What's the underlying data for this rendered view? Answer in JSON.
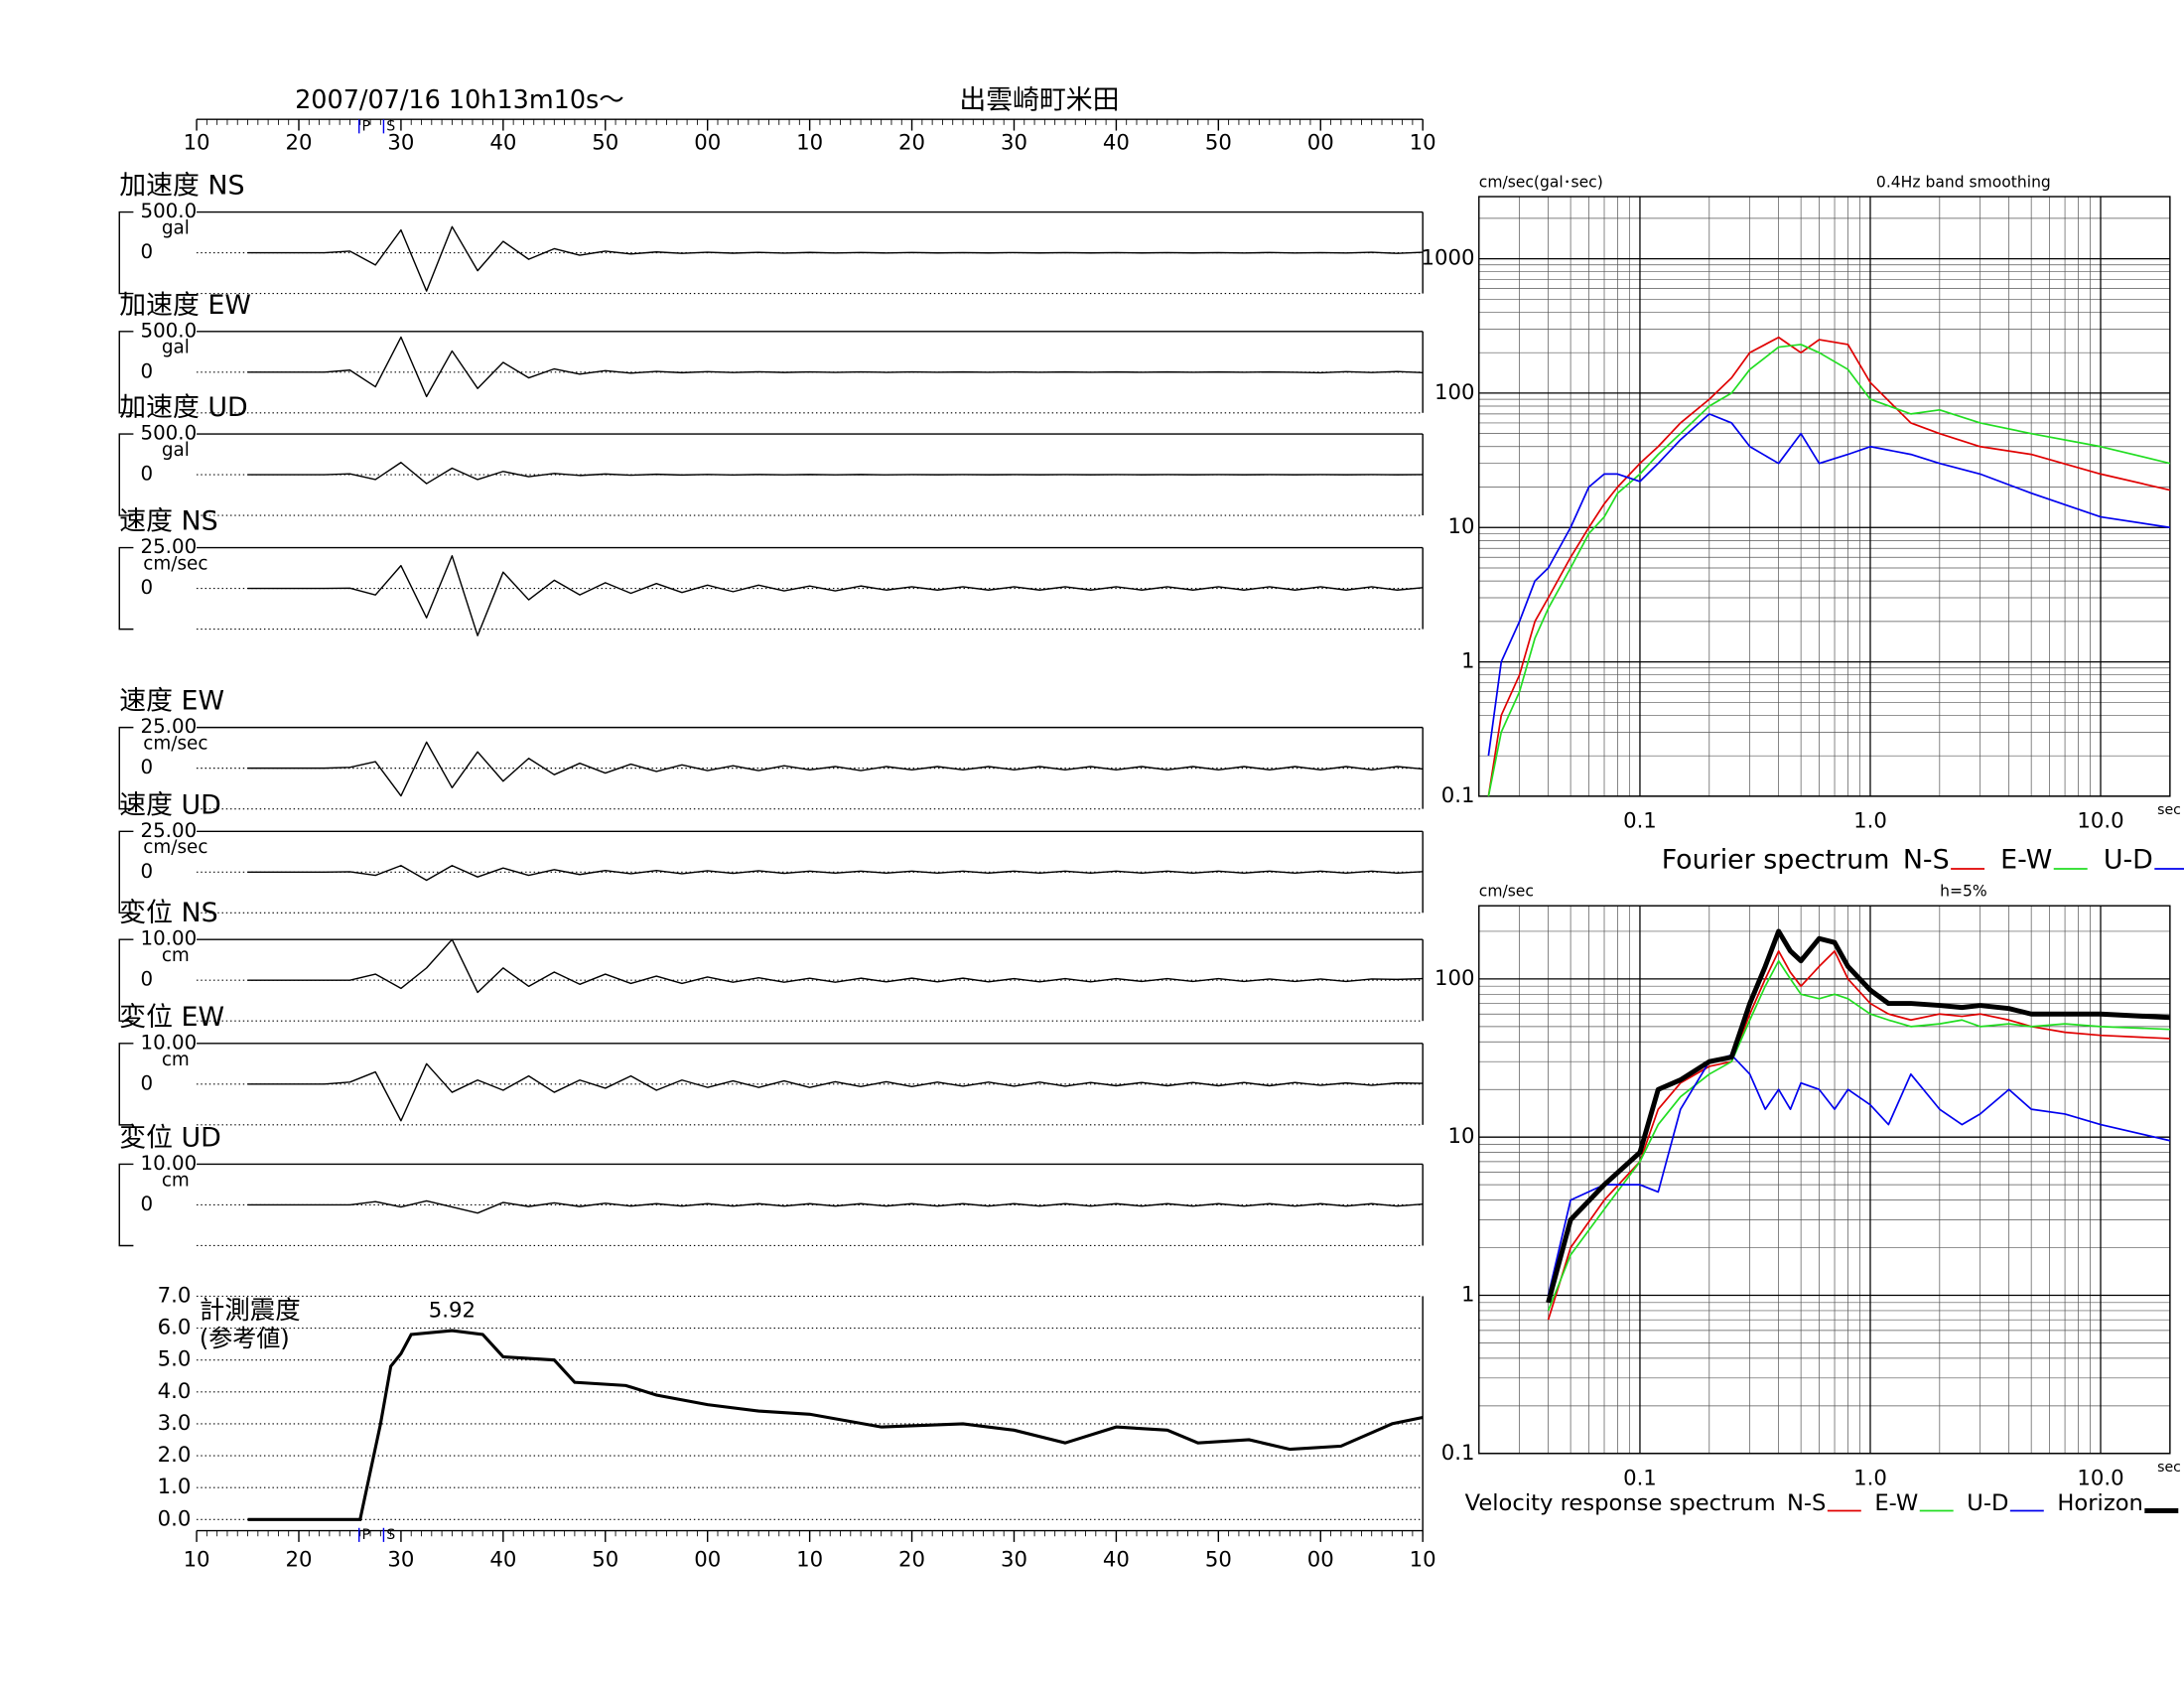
{
  "chart_data": [
    {
      "type": "waveform",
      "title": "2007/07/16  10h13m10s〜",
      "subtitle": "出雲崎町米田",
      "color": "#000000",
      "x": [
        15,
        17.5,
        20,
        22.5,
        25,
        27.5,
        30,
        32.5,
        35,
        37.5,
        40,
        42.5,
        45,
        47.5,
        50,
        52.5,
        55,
        57.5,
        60,
        62.5,
        65,
        67.5,
        70,
        72.5,
        75,
        77.5,
        80,
        82.5,
        85,
        87.5,
        90,
        92.5,
        95,
        97.5,
        100,
        102.5,
        105,
        107.5,
        110,
        112.5,
        115,
        117.5,
        120,
        122.5,
        125,
        127.5,
        130
      ],
      "xlim": [
        10,
        130
      ],
      "xticks": [
        10,
        20,
        30,
        40,
        50,
        {
          "value": 60,
          "label": "00"
        },
        {
          "value": 70,
          "label": "10"
        },
        {
          "value": 80,
          "label": "20"
        },
        {
          "value": 90,
          "label": "30"
        },
        {
          "value": 100,
          "label": "40"
        },
        {
          "value": 110,
          "label": "50"
        },
        {
          "value": 120,
          "label": "00"
        },
        {
          "value": 130,
          "label": "10"
        }
      ],
      "phase_markers": [
        {
          "label": "P",
          "value": 25.9
        },
        {
          "label": "S",
          "value": 28.3
        }
      ],
      "panels": [
        {
          "name": "加速度 NS",
          "unit": "gal",
          "ylim": [
            -500,
            500
          ],
          "yticks": [
            {
              "value": 500,
              "label": "500.0"
            },
            0
          ],
          "values": [
            0,
            0,
            0,
            0,
            20,
            -150,
            280,
            -470,
            320,
            -220,
            140,
            -80,
            50,
            -30,
            20,
            -15,
            10,
            -8,
            6,
            -5,
            5,
            -4,
            4,
            -3,
            3,
            -3,
            3,
            -2,
            2,
            -2,
            2,
            -2,
            2,
            -2,
            2,
            -2,
            2,
            -2,
            2,
            -3,
            3,
            -3,
            2,
            -3,
            6,
            -8,
            6
          ]
        },
        {
          "name": "加速度 EW",
          "unit": "gal",
          "ylim": [
            -500,
            500
          ],
          "yticks": [
            {
              "value": 500,
              "label": "500.0"
            },
            0
          ],
          "values": [
            0,
            0,
            0,
            0,
            25,
            -180,
            430,
            -300,
            260,
            -200,
            120,
            -70,
            40,
            -25,
            18,
            -12,
            9,
            -7,
            6,
            -5,
            4,
            -4,
            3,
            -3,
            3,
            -3,
            3,
            -2,
            2,
            -2,
            2,
            -2,
            2,
            -2,
            2,
            -2,
            2,
            -2,
            2,
            -2,
            2,
            -2,
            -8,
            6,
            -5,
            7,
            -6
          ]
        },
        {
          "name": "加速度 UD",
          "unit": "gal",
          "ylim": [
            -500,
            500
          ],
          "yticks": [
            {
              "value": 500,
              "label": "500.0"
            },
            0
          ],
          "values": [
            0,
            0,
            0,
            0,
            10,
            -60,
            150,
            -110,
            80,
            -60,
            40,
            -25,
            15,
            -10,
            8,
            -6,
            5,
            -4,
            3,
            -3,
            2,
            -2,
            2,
            -2,
            2,
            -2,
            1,
            -1,
            1,
            -1,
            1,
            -1,
            1,
            -1,
            1,
            -1,
            1,
            -1,
            1,
            -1,
            1,
            -1,
            1,
            -1,
            1,
            -1,
            1
          ]
        },
        {
          "name": "速度 NS",
          "unit": "cm/sec",
          "ylim": [
            -25,
            25
          ],
          "yticks": [
            {
              "value": 25,
              "label": "25.00"
            },
            0
          ],
          "values": [
            0,
            0,
            0,
            0,
            0.2,
            -4,
            14,
            -18,
            20,
            -29,
            10,
            -7,
            5,
            -4,
            3.5,
            -3,
            3,
            -2.5,
            2,
            -2,
            2,
            -1.5,
            1.5,
            -1.5,
            1.5,
            -1,
            1,
            -1,
            1,
            -1,
            1,
            -1,
            1,
            -1,
            1,
            -1,
            1,
            -1,
            1,
            -1,
            1,
            -1,
            1,
            -1,
            1,
            -1,
            0.5
          ]
        },
        {
          "name": "速度 EW",
          "unit": "cm/sec",
          "ylim": [
            -25,
            25
          ],
          "yticks": [
            {
              "value": 25,
              "label": "25.00"
            },
            0
          ],
          "values": [
            0,
            0,
            0,
            0,
            0.5,
            4,
            -17,
            16,
            -12,
            10,
            -8,
            6,
            -4,
            3,
            -3,
            2.5,
            -2,
            2,
            -1.5,
            1.5,
            -1.5,
            1.5,
            -1,
            1,
            -1.5,
            1,
            -1,
            1,
            -1,
            1,
            -1,
            1,
            -1,
            1,
            -1,
            1,
            -1,
            1,
            -1,
            1,
            -1,
            1,
            -1,
            1,
            -1,
            1,
            -0.5
          ]
        },
        {
          "name": "速度 UD",
          "unit": "cm/sec",
          "ylim": [
            -25,
            25
          ],
          "yticks": [
            {
              "value": 25,
              "label": "25.00"
            },
            0
          ],
          "values": [
            0,
            0,
            0,
            0,
            0.2,
            -2,
            4,
            -5,
            4,
            -3,
            2.5,
            -2,
            1.5,
            -1.5,
            1,
            -1,
            1,
            -1,
            0.8,
            -0.8,
            0.8,
            -0.8,
            0.6,
            -0.6,
            0.6,
            -0.6,
            0.6,
            -0.6,
            0.6,
            -0.6,
            0.6,
            -0.6,
            0.6,
            -0.6,
            0.6,
            -0.6,
            0.6,
            -0.6,
            0.6,
            -0.6,
            0.6,
            -0.6,
            0.6,
            -0.6,
            0.6,
            -0.6,
            0.3
          ]
        },
        {
          "name": "変位 NS",
          "unit": "cm",
          "ylim": [
            -10,
            10
          ],
          "yticks": [
            {
              "value": 10,
              "label": "10.00"
            },
            0
          ],
          "values": [
            0,
            0,
            0,
            0,
            0,
            1.5,
            -2,
            3,
            10,
            -3,
            3,
            -1.5,
            2,
            -1,
            1.5,
            -0.8,
            1,
            -0.8,
            0.8,
            -0.5,
            0.6,
            -0.5,
            0.5,
            -0.5,
            0.5,
            -0.4,
            0.5,
            -0.4,
            0.5,
            -0.4,
            0.4,
            -0.4,
            0.4,
            -0.4,
            0.4,
            -0.3,
            0.4,
            -0.3,
            0.4,
            -0.3,
            0.3,
            -0.3,
            0.3,
            -0.3,
            0.3,
            0.2,
            0.4
          ]
        },
        {
          "name": "変位 EW",
          "unit": "cm",
          "ylim": [
            -10,
            10
          ],
          "yticks": [
            {
              "value": 10,
              "label": "10.00"
            },
            0
          ],
          "values": [
            0,
            0,
            0,
            0,
            0.5,
            3,
            -9,
            5,
            -2,
            1,
            -1.5,
            2,
            -2,
            1,
            -1,
            2,
            -1.5,
            1,
            -0.8,
            0.8,
            -0.8,
            0.8,
            -0.8,
            0.6,
            -0.6,
            0.6,
            -0.6,
            0.5,
            -0.5,
            0.5,
            -0.5,
            0.5,
            -0.5,
            0.4,
            -0.4,
            0.4,
            -0.4,
            0.4,
            -0.4,
            0.4,
            -0.4,
            0.4,
            -0.3,
            0.3,
            -0.3,
            0.3,
            0.2
          ]
        },
        {
          "name": "変位 UD",
          "unit": "cm",
          "ylim": [
            -10,
            10
          ],
          "yticks": [
            {
              "value": 10,
              "label": "10.00"
            },
            0
          ],
          "values": [
            0,
            0,
            0,
            0,
            0,
            0.8,
            -0.5,
            1,
            -0.5,
            -2,
            0.6,
            -0.4,
            0.5,
            -0.4,
            0.4,
            -0.3,
            0.3,
            -0.3,
            0.3,
            -0.3,
            0.3,
            -0.3,
            0.3,
            -0.3,
            0.3,
            -0.3,
            0.3,
            -0.3,
            0.3,
            -0.3,
            0.3,
            -0.3,
            0.3,
            -0.3,
            0.3,
            -0.3,
            0.3,
            -0.3,
            0.3,
            -0.3,
            0.3,
            -0.3,
            0.3,
            -0.3,
            0.3,
            -0.3,
            0.2
          ]
        }
      ]
    },
    {
      "type": "intensity",
      "title": "計測震度",
      "subtitle": "(参考値)",
      "color": "#000000",
      "x": [
        15,
        26,
        27,
        28,
        29,
        30,
        31,
        35,
        38,
        40,
        45,
        47,
        52,
        55,
        60,
        65,
        70,
        77,
        85,
        90,
        95,
        100,
        105,
        108,
        113,
        117,
        122,
        127,
        130
      ],
      "values": [
        0,
        0,
        1.5,
        3,
        4.8,
        5.2,
        5.8,
        5.92,
        5.8,
        5.1,
        5.0,
        4.3,
        4.2,
        3.9,
        3.6,
        3.4,
        3.3,
        2.9,
        3.0,
        2.8,
        2.4,
        2.9,
        2.8,
        2.4,
        2.5,
        2.2,
        2.3,
        3.0,
        3.2
      ],
      "peak": {
        "x": 35,
        "value": 5.92
      },
      "ylim": [
        0,
        7
      ],
      "yticks": [
        {
          "value": 0,
          "label": "0.0"
        },
        {
          "value": 1,
          "label": "1.0"
        },
        {
          "value": 2,
          "label": "2.0"
        },
        {
          "value": 3,
          "label": "3.0"
        },
        {
          "value": 4,
          "label": "4.0"
        },
        {
          "value": 5,
          "label": "5.0"
        },
        {
          "value": 6,
          "label": "6.0"
        },
        {
          "value": 7,
          "label": "7.0"
        }
      ],
      "grid": true
    },
    {
      "type": "line",
      "ylabel": "cm/sec(gal･sec)",
      "xlabel": "sec",
      "annotation": "0.4Hz band smoothing",
      "legend_title": "Fourier spectrum",
      "log_x": true,
      "log_y": true,
      "grid": true,
      "x": [
        0.022,
        0.025,
        0.03,
        0.035,
        0.04,
        0.05,
        0.06,
        0.07,
        0.08,
        0.1,
        0.12,
        0.15,
        0.2,
        0.25,
        0.3,
        0.4,
        0.5,
        0.6,
        0.8,
        1.0,
        1.5,
        2,
        3,
        5,
        10,
        20
      ],
      "xlim": [
        0.02,
        20
      ],
      "ylim": [
        0.1,
        2900
      ],
      "xticks": [
        0.1,
        {
          "value": 1,
          "label": "1.0"
        },
        {
          "value": 10,
          "label": "10.0"
        }
      ],
      "yticks": [
        0.1,
        1,
        10,
        100,
        1000
      ],
      "series": [
        {
          "name": "N-S",
          "color": "#e00000",
          "linewidth": 1.2,
          "values": [
            0.1,
            0.4,
            0.8,
            2,
            3,
            6,
            10,
            15,
            20,
            30,
            40,
            60,
            90,
            130,
            200,
            260,
            200,
            250,
            230,
            120,
            60,
            50,
            40,
            35,
            25,
            19
          ]
        },
        {
          "name": "E-W",
          "color": "#22dd22",
          "linewidth": 1.2,
          "values": [
            0.1,
            0.3,
            0.6,
            1.5,
            2.5,
            5,
            9,
            12,
            18,
            25,
            35,
            50,
            80,
            100,
            150,
            220,
            230,
            200,
            150,
            90,
            70,
            75,
            60,
            50,
            40,
            30
          ]
        },
        {
          "name": "U-D",
          "color": "#0000ee",
          "linewidth": 1.2,
          "values": [
            0.2,
            1,
            2,
            4,
            5,
            10,
            20,
            25,
            25,
            22,
            30,
            45,
            70,
            60,
            40,
            30,
            50,
            30,
            35,
            40,
            35,
            30,
            25,
            18,
            12,
            10
          ]
        }
      ]
    },
    {
      "type": "line",
      "ylabel": "cm/sec",
      "xlabel": "sec",
      "annotation": "h=5%",
      "legend_title": "Velocity response spectrum",
      "log_x": true,
      "log_y": true,
      "grid": true,
      "x": [
        0.04,
        0.05,
        0.07,
        0.1,
        0.12,
        0.15,
        0.2,
        0.25,
        0.3,
        0.35,
        0.4,
        0.45,
        0.5,
        0.6,
        0.7,
        0.8,
        1.0,
        1.2,
        1.5,
        2,
        2.5,
        3,
        4,
        5,
        7,
        10,
        20
      ],
      "xlim": [
        0.02,
        20
      ],
      "ylim": [
        0.1,
        290
      ],
      "xticks": [
        0.1,
        {
          "value": 1,
          "label": "1.0"
        },
        {
          "value": 10,
          "label": "10.0"
        }
      ],
      "yticks": [
        0.1,
        1,
        10,
        100
      ],
      "series": [
        {
          "name": "N-S",
          "color": "#e00000",
          "linewidth": 1.2,
          "values": [
            0.7,
            2,
            4,
            7,
            15,
            22,
            28,
            30,
            60,
            100,
            150,
            110,
            90,
            120,
            150,
            100,
            70,
            60,
            55,
            60,
            58,
            60,
            55,
            50,
            46,
            44,
            42
          ]
        },
        {
          "name": "E-W",
          "color": "#22dd22",
          "linewidth": 1.2,
          "values": [
            0.8,
            1.8,
            3.5,
            7,
            12,
            18,
            25,
            30,
            55,
            90,
            130,
            100,
            80,
            75,
            80,
            75,
            60,
            55,
            50,
            52,
            55,
            50,
            52,
            50,
            52,
            50,
            48
          ]
        },
        {
          "name": "U-D",
          "color": "#0000ee",
          "linewidth": 1.2,
          "values": [
            1,
            4,
            5,
            5,
            4.5,
            15,
            30,
            33,
            25,
            15,
            20,
            15,
            22,
            20,
            15,
            20,
            16,
            12,
            25,
            15,
            12,
            14,
            20,
            15,
            14,
            12,
            9.5
          ]
        },
        {
          "name": "Horizon",
          "color": "#000000",
          "linewidth": 3.5,
          "values": [
            0.9,
            3,
            5,
            8,
            20,
            23,
            30,
            32,
            70,
            120,
            200,
            150,
            130,
            180,
            170,
            120,
            85,
            70,
            70,
            68,
            66,
            68,
            65,
            60,
            60,
            60,
            57
          ]
        }
      ]
    }
  ]
}
